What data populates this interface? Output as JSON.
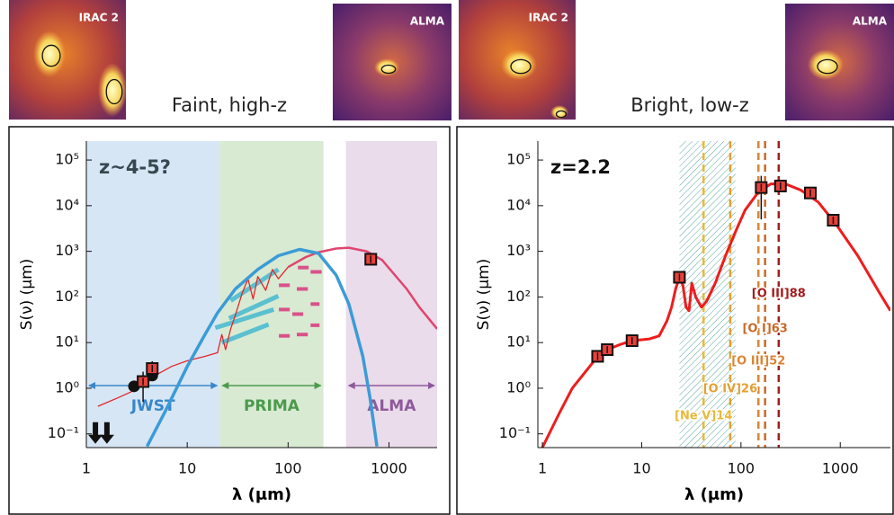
{
  "chart_data": [
    {
      "type": "line",
      "title": "Faint, high-z",
      "images": [
        "IRAC 2",
        "ALMA"
      ],
      "annotation": {
        "text": "z~4-5?",
        "color": "#37474f"
      },
      "xlabel": "λ (μm)",
      "ylabel": "S(ν) (μm)",
      "xscale": "log",
      "yscale": "log",
      "xlim": [
        1,
        3000
      ],
      "xticks": [
        1,
        10,
        100,
        1000
      ],
      "ylim": [
        0.05,
        260000
      ],
      "yticks": [
        {
          "value": 0.1,
          "label": "10⁻¹"
        },
        {
          "value": 1,
          "label": "10⁰"
        },
        {
          "value": 10,
          "label": "10¹"
        },
        {
          "value": 100,
          "label": "10²"
        },
        {
          "value": 1000,
          "label": "10³"
        },
        {
          "value": 10000,
          "label": "10⁴"
        },
        {
          "value": 100000,
          "label": "10⁵"
        }
      ],
      "bands": [
        {
          "name": "JWST",
          "range": [
            1,
            21
          ],
          "color": "#d6e6f5",
          "label_color": "#3a86c8"
        },
        {
          "name": "PRIMA",
          "range": [
            21,
            224
          ],
          "color": "#d9ead3",
          "label_color": "#4c9a4c"
        },
        {
          "name": "ALMA",
          "range": [
            375,
            3000
          ],
          "color": "#eadcea",
          "label_color": "#8e5a9c"
        }
      ],
      "series": [
        {
          "color": "#e3262b",
          "linewidth": 1.3,
          "x": [
            1.3,
            2,
            3,
            4,
            5,
            7,
            10,
            15,
            20,
            22,
            24,
            27,
            30,
            35,
            40,
            45,
            50,
            60,
            70,
            80,
            100
          ],
          "values": [
            0.4,
            0.6,
            0.9,
            1.3,
            2,
            3,
            4,
            5,
            6,
            15,
            7,
            20,
            40,
            120,
            250,
            90,
            280,
            140,
            400,
            250,
            450
          ]
        },
        {
          "color": "#e0456f",
          "linewidth": 2.5,
          "x": [
            100,
            150,
            200,
            300,
            400,
            600,
            850,
            1500,
            2000,
            3000
          ],
          "values": [
            450,
            750,
            950,
            1150,
            1200,
            1000,
            650,
            150,
            60,
            20
          ]
        },
        {
          "color": "#3b9bd6",
          "linewidth": 3.5,
          "x": [
            4,
            6,
            10,
            15,
            20,
            30,
            50,
            80,
            130,
            200,
            300,
            400,
            550,
            650,
            760
          ],
          "values": [
            0.053,
            0.3,
            3,
            15,
            45,
            150,
            400,
            800,
            1100,
            900,
            300,
            70,
            5,
            0.6,
            0.053
          ]
        }
      ],
      "segments": [
        {
          "color": "#5bc0d0",
          "linewidth": 5,
          "x": [
            27,
            80
          ],
          "values": [
            83,
            400
          ]
        },
        {
          "color": "#5bc0d0",
          "linewidth": 5,
          "x": [
            26,
            80
          ],
          "values": [
            34,
            105
          ]
        },
        {
          "color": "#5bc0d0",
          "linewidth": 5,
          "x": [
            19,
            72
          ],
          "values": [
            21,
            53
          ]
        },
        {
          "color": "#5bc0d0",
          "linewidth": 5,
          "x": [
            22,
            64
          ],
          "values": [
            10,
            25
          ]
        },
        {
          "color": "#d9528a",
          "linewidth": 4,
          "x": [
            125,
            160
          ],
          "values": [
            440,
            440
          ]
        },
        {
          "color": "#d9528a",
          "linewidth": 4,
          "x": [
            167,
            215
          ],
          "values": [
            355,
            355
          ]
        },
        {
          "color": "#d9528a",
          "linewidth": 4,
          "x": [
            81,
            104
          ],
          "values": [
            180,
            180
          ]
        },
        {
          "color": "#d9528a",
          "linewidth": 4,
          "x": [
            122,
            157
          ],
          "values": [
            150,
            150
          ]
        },
        {
          "color": "#d9528a",
          "linewidth": 4,
          "x": [
            167,
            205
          ],
          "values": [
            70,
            70
          ]
        },
        {
          "color": "#d9528a",
          "linewidth": 4,
          "x": [
            81,
            104
          ],
          "values": [
            53,
            53
          ]
        },
        {
          "color": "#d9528a",
          "linewidth": 4,
          "x": [
            110,
            141
          ],
          "values": [
            42,
            42
          ]
        },
        {
          "color": "#d9528a",
          "linewidth": 4,
          "x": [
            167,
            205
          ],
          "values": [
            24,
            24
          ]
        },
        {
          "color": "#d9528a",
          "linewidth": 4,
          "x": [
            122,
            157
          ],
          "values": [
            15,
            15
          ]
        },
        {
          "color": "#d9528a",
          "linewidth": 4,
          "x": [
            81,
            104
          ],
          "values": [
            14,
            14
          ]
        }
      ],
      "points": [
        {
          "marker": "circle",
          "color": "#111111",
          "x": [
            2.97,
            4.5
          ],
          "values": [
            1.1,
            1.9
          ],
          "errors": [
            null,
            null
          ]
        },
        {
          "marker": "square",
          "color": "#e8413a",
          "x": [
            3.65,
            4.5,
            660
          ],
          "values": [
            1.4,
            2.7,
            670
          ],
          "errors": [
            0.9,
            1.2,
            150
          ]
        }
      ],
      "upper_limits": {
        "color": "#111111",
        "x": [
          1.23,
          1.6
        ],
        "values": [
          0.18,
          0.18
        ]
      }
    },
    {
      "type": "line",
      "title": "Bright, low-z",
      "images": [
        "IRAC 2",
        "ALMA"
      ],
      "annotation": {
        "text": "z=2.2",
        "color": "#111111"
      },
      "xlabel": "λ (μm)",
      "ylabel": "S(ν) (μm)",
      "xscale": "log",
      "yscale": "log",
      "xlim": [
        0.9,
        3200
      ],
      "xticks": [
        1,
        10,
        100,
        1000
      ],
      "ylim": [
        0.05,
        260000
      ],
      "yticks": [
        {
          "value": 0.1,
          "label": "10⁻¹"
        },
        {
          "value": 1,
          "label": "10⁰"
        },
        {
          "value": 10,
          "label": "10¹"
        },
        {
          "value": 100,
          "label": "10²"
        },
        {
          "value": 1000,
          "label": "10³"
        },
        {
          "value": 10000,
          "label": "10⁴"
        },
        {
          "value": 100000,
          "label": "10⁵"
        }
      ],
      "shade": {
        "range": [
          24,
          88
        ],
        "color": "#5aa6a0"
      },
      "series": [
        {
          "color": "#ee1c1c",
          "linewidth": 3,
          "x": [
            0.95,
            1.5,
            2,
            3,
            3.6,
            4.5,
            6,
            8,
            12,
            15,
            18,
            20,
            22,
            24,
            26,
            28,
            30,
            32,
            35,
            40,
            45,
            55,
            70,
            90,
            110,
            150,
            200,
            280,
            400,
            600,
            900,
            1500,
            2500,
            3200
          ],
          "values": [
            0.04,
            0.3,
            1,
            3,
            5,
            7,
            9,
            11,
            12,
            14,
            30,
            60,
            150,
            270,
            180,
            60,
            50,
            200,
            100,
            60,
            80,
            200,
            800,
            3000,
            8000,
            20000,
            30000,
            30000,
            22000,
            12000,
            4000,
            800,
            120,
            50
          ]
        }
      ],
      "points": [
        {
          "marker": "square",
          "color": "#e8413a",
          "x": [
            3.6,
            4.5,
            8,
            24,
            160,
            250,
            500,
            850
          ],
          "values": [
            5,
            7,
            11,
            270,
            25000,
            27000,
            19000,
            4800
          ],
          "errors": [
            null,
            null,
            null,
            null,
            20000,
            null,
            null,
            null
          ]
        }
      ],
      "lines": [
        {
          "name": "[Ne V]14",
          "x": 42,
          "color": "#e8b93a"
        },
        {
          "name": "[O IV]26",
          "x": 78,
          "color": "#e3a032"
        },
        {
          "name": "[O III]52",
          "x": 150,
          "color": "#d98536"
        },
        {
          "name": "[O I]63",
          "x": 175,
          "color": "#c86a2a"
        },
        {
          "name": "[O III]88",
          "x": 240,
          "color": "#a31d1d"
        }
      ]
    }
  ]
}
